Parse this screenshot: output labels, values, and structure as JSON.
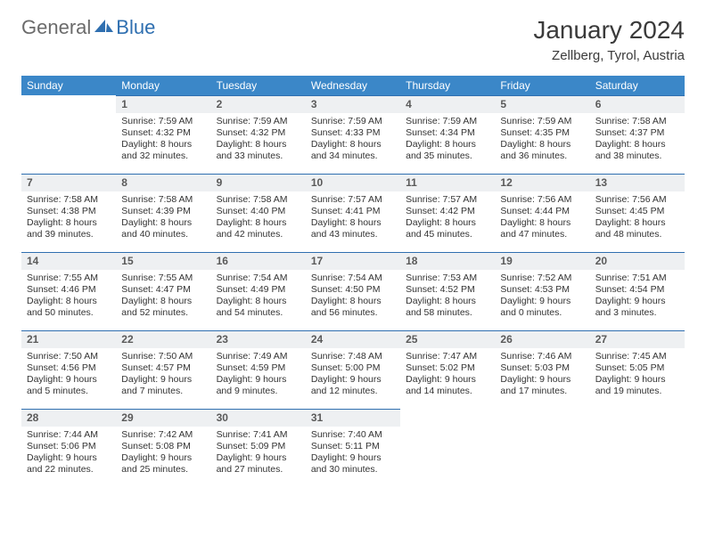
{
  "logo": {
    "part1": "General",
    "part2": "Blue"
  },
  "title": "January 2024",
  "location": "Zellberg, Tyrol, Austria",
  "colors": {
    "header_bg": "#3b87c8",
    "header_fg": "#ffffff",
    "daynum_bg": "#eef0f2",
    "rule": "#2f6fb0",
    "logo_gray": "#6b6b6b",
    "logo_blue": "#2f6fb0"
  },
  "weekdays": [
    "Sunday",
    "Monday",
    "Tuesday",
    "Wednesday",
    "Thursday",
    "Friday",
    "Saturday"
  ],
  "days": {
    "1": {
      "sunrise": "7:59 AM",
      "sunset": "4:32 PM",
      "daylight": "8 hours and 32 minutes."
    },
    "2": {
      "sunrise": "7:59 AM",
      "sunset": "4:32 PM",
      "daylight": "8 hours and 33 minutes."
    },
    "3": {
      "sunrise": "7:59 AM",
      "sunset": "4:33 PM",
      "daylight": "8 hours and 34 minutes."
    },
    "4": {
      "sunrise": "7:59 AM",
      "sunset": "4:34 PM",
      "daylight": "8 hours and 35 minutes."
    },
    "5": {
      "sunrise": "7:59 AM",
      "sunset": "4:35 PM",
      "daylight": "8 hours and 36 minutes."
    },
    "6": {
      "sunrise": "7:58 AM",
      "sunset": "4:37 PM",
      "daylight": "8 hours and 38 minutes."
    },
    "7": {
      "sunrise": "7:58 AM",
      "sunset": "4:38 PM",
      "daylight": "8 hours and 39 minutes."
    },
    "8": {
      "sunrise": "7:58 AM",
      "sunset": "4:39 PM",
      "daylight": "8 hours and 40 minutes."
    },
    "9": {
      "sunrise": "7:58 AM",
      "sunset": "4:40 PM",
      "daylight": "8 hours and 42 minutes."
    },
    "10": {
      "sunrise": "7:57 AM",
      "sunset": "4:41 PM",
      "daylight": "8 hours and 43 minutes."
    },
    "11": {
      "sunrise": "7:57 AM",
      "sunset": "4:42 PM",
      "daylight": "8 hours and 45 minutes."
    },
    "12": {
      "sunrise": "7:56 AM",
      "sunset": "4:44 PM",
      "daylight": "8 hours and 47 minutes."
    },
    "13": {
      "sunrise": "7:56 AM",
      "sunset": "4:45 PM",
      "daylight": "8 hours and 48 minutes."
    },
    "14": {
      "sunrise": "7:55 AM",
      "sunset": "4:46 PM",
      "daylight": "8 hours and 50 minutes."
    },
    "15": {
      "sunrise": "7:55 AM",
      "sunset": "4:47 PM",
      "daylight": "8 hours and 52 minutes."
    },
    "16": {
      "sunrise": "7:54 AM",
      "sunset": "4:49 PM",
      "daylight": "8 hours and 54 minutes."
    },
    "17": {
      "sunrise": "7:54 AM",
      "sunset": "4:50 PM",
      "daylight": "8 hours and 56 minutes."
    },
    "18": {
      "sunrise": "7:53 AM",
      "sunset": "4:52 PM",
      "daylight": "8 hours and 58 minutes."
    },
    "19": {
      "sunrise": "7:52 AM",
      "sunset": "4:53 PM",
      "daylight": "9 hours and 0 minutes."
    },
    "20": {
      "sunrise": "7:51 AM",
      "sunset": "4:54 PM",
      "daylight": "9 hours and 3 minutes."
    },
    "21": {
      "sunrise": "7:50 AM",
      "sunset": "4:56 PM",
      "daylight": "9 hours and 5 minutes."
    },
    "22": {
      "sunrise": "7:50 AM",
      "sunset": "4:57 PM",
      "daylight": "9 hours and 7 minutes."
    },
    "23": {
      "sunrise": "7:49 AM",
      "sunset": "4:59 PM",
      "daylight": "9 hours and 9 minutes."
    },
    "24": {
      "sunrise": "7:48 AM",
      "sunset": "5:00 PM",
      "daylight": "9 hours and 12 minutes."
    },
    "25": {
      "sunrise": "7:47 AM",
      "sunset": "5:02 PM",
      "daylight": "9 hours and 14 minutes."
    },
    "26": {
      "sunrise": "7:46 AM",
      "sunset": "5:03 PM",
      "daylight": "9 hours and 17 minutes."
    },
    "27": {
      "sunrise": "7:45 AM",
      "sunset": "5:05 PM",
      "daylight": "9 hours and 19 minutes."
    },
    "28": {
      "sunrise": "7:44 AM",
      "sunset": "5:06 PM",
      "daylight": "9 hours and 22 minutes."
    },
    "29": {
      "sunrise": "7:42 AM",
      "sunset": "5:08 PM",
      "daylight": "9 hours and 25 minutes."
    },
    "30": {
      "sunrise": "7:41 AM",
      "sunset": "5:09 PM",
      "daylight": "9 hours and 27 minutes."
    },
    "31": {
      "sunrise": "7:40 AM",
      "sunset": "5:11 PM",
      "daylight": "9 hours and 30 minutes."
    }
  },
  "labels": {
    "sunrise": "Sunrise: ",
    "sunset": "Sunset: ",
    "daylight": "Daylight: "
  },
  "grid": [
    [
      null,
      1,
      2,
      3,
      4,
      5,
      6
    ],
    [
      7,
      8,
      9,
      10,
      11,
      12,
      13
    ],
    [
      14,
      15,
      16,
      17,
      18,
      19,
      20
    ],
    [
      21,
      22,
      23,
      24,
      25,
      26,
      27
    ],
    [
      28,
      29,
      30,
      31,
      null,
      null,
      null
    ]
  ]
}
